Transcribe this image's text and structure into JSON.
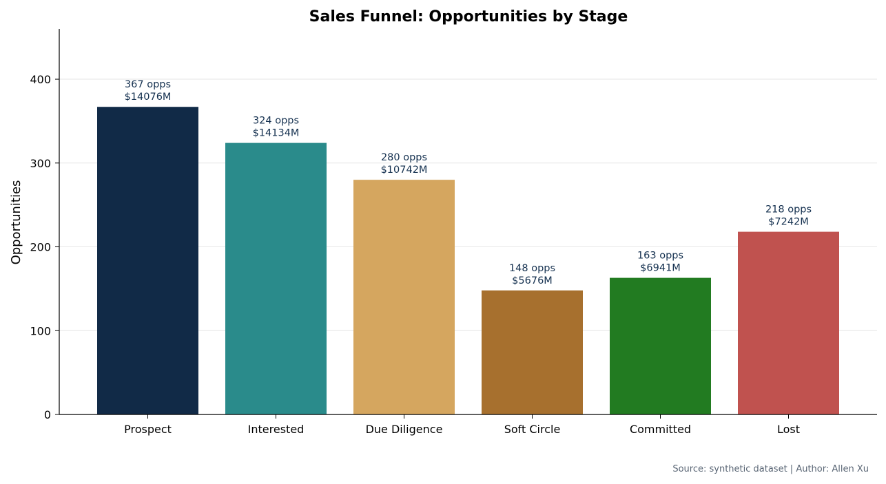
{
  "chart_data": {
    "type": "bar",
    "title": "Sales Funnel: Opportunities by Stage",
    "xlabel": "",
    "ylabel": "Opportunities",
    "categories": [
      "Prospect",
      "Interested",
      "Due Diligence",
      "Soft Circle",
      "Committed",
      "Lost"
    ],
    "values": [
      367,
      324,
      280,
      148,
      163,
      218
    ],
    "value_labels": [
      "367 opps",
      "324 opps",
      "280 opps",
      "148 opps",
      "163 opps",
      "218 opps"
    ],
    "amount_labels": [
      "$14076M",
      "$14134M",
      "$10742M",
      "$5676M",
      "$6941M",
      "$7242M"
    ],
    "colors": [
      "#112a47",
      "#2a8b8b",
      "#d5a65f",
      "#a7702e",
      "#227b21",
      "#c0524f"
    ],
    "ylim": [
      0,
      460
    ],
    "yticks": [
      0,
      100,
      200,
      300,
      400
    ],
    "grid": true,
    "legend": "none"
  },
  "footer": {
    "source": "Source: synthetic dataset | Author: Allen Xu"
  }
}
